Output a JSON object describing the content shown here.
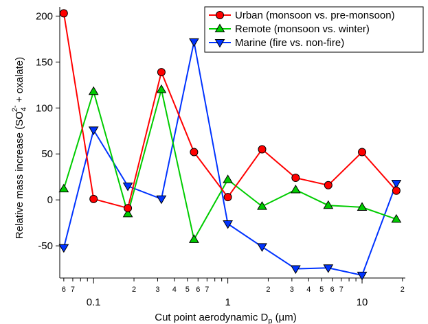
{
  "chart_data": {
    "type": "line",
    "xscale": "log",
    "xlabel_main": "Cut point aerodynamic D",
    "xlabel_sub": "p",
    "xlabel_unit": " (µm)",
    "ylabel_part1": "Relative mass increase (SO",
    "ylabel_sub": "4",
    "ylabel_sup": "2-",
    "ylabel_part2": " + oxalate)",
    "xlim": [
      0.056,
      21
    ],
    "ylim": [
      -85,
      210
    ],
    "yticks": [
      -50,
      0,
      50,
      100,
      150,
      200
    ],
    "ytick_labels": [
      "-50",
      "0",
      "50",
      "100",
      "150",
      "200"
    ],
    "xticks_major": [
      0.1,
      1,
      10
    ],
    "xtick_major_labels": [
      "0.1",
      "1",
      "10"
    ],
    "xticks_minor": [
      0.06,
      0.07,
      0.08,
      0.09,
      0.2,
      0.3,
      0.4,
      0.5,
      0.6,
      0.7,
      0.8,
      0.9,
      2,
      3,
      4,
      5,
      6,
      7,
      8,
      9,
      20
    ],
    "xtick_minor_labels": [
      "6",
      "7",
      "",
      "",
      "2",
      "3",
      "4",
      "5",
      "6",
      "7",
      "",
      "",
      "2",
      "3",
      "4",
      "5",
      "6",
      "7",
      "",
      "",
      "2"
    ],
    "legend_position": "top-right",
    "series": [
      {
        "name": "Urban (monsoon vs. pre-monsoon)",
        "color": "#ff0000",
        "marker": "circle",
        "x": [
          0.06,
          0.1,
          0.18,
          0.32,
          0.56,
          1.0,
          1.8,
          3.2,
          5.6,
          10,
          18
        ],
        "y": [
          203,
          1,
          -9,
          139,
          52,
          3,
          55,
          24,
          16,
          52,
          10
        ]
      },
      {
        "name": "Remote (monsoon vs. winter)",
        "color": "#00cc00",
        "marker": "triangle-up",
        "x": [
          0.06,
          0.1,
          0.18,
          0.32,
          0.56,
          1.0,
          1.8,
          3.2,
          5.6,
          10,
          18
        ],
        "y": [
          12,
          118,
          -15,
          120,
          -43,
          22,
          -7,
          11,
          -6,
          -8,
          -21
        ]
      },
      {
        "name": "Marine (fire vs. non-fire)",
        "color": "#0033ff",
        "marker": "triangle-down",
        "x": [
          0.06,
          0.1,
          0.18,
          0.32,
          0.56,
          1.0,
          1.8,
          3.2,
          5.6,
          10,
          18
        ],
        "y": [
          -52,
          76,
          15,
          1,
          172,
          -26,
          -51,
          -75,
          -74,
          -82,
          18
        ]
      }
    ]
  }
}
